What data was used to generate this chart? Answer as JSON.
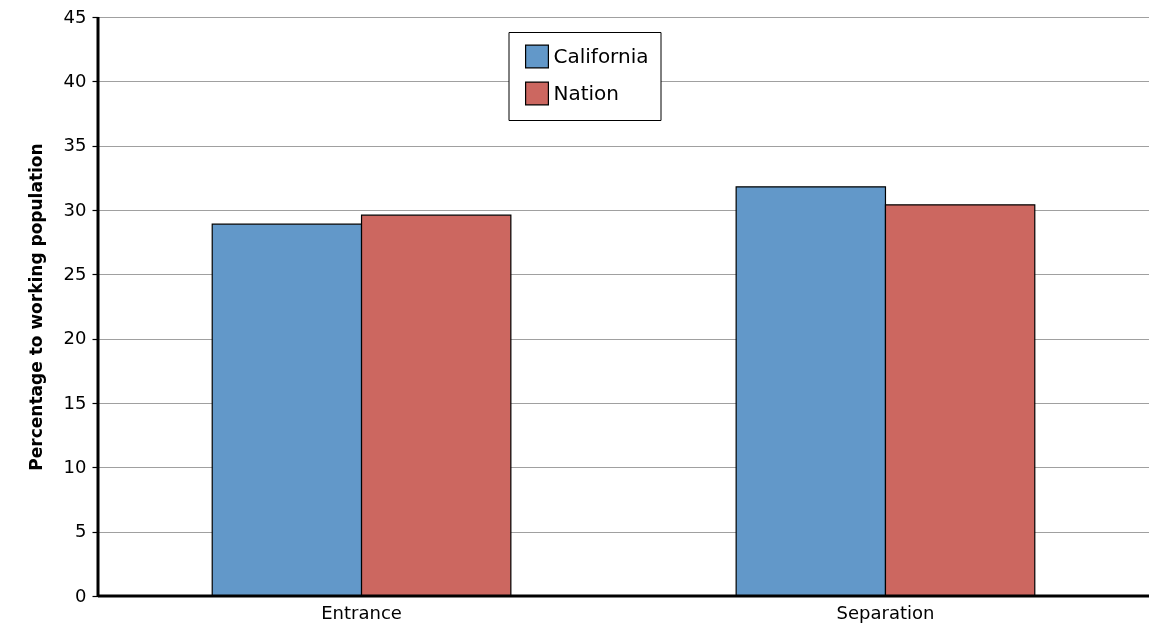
{
  "chart_data": {
    "type": "bar",
    "ylabel": "Percentage to working population",
    "categories": [
      "Entrance",
      "Separation"
    ],
    "series": [
      {
        "name": "California",
        "color": "#6298c9",
        "values": [
          28.9,
          31.8
        ]
      },
      {
        "name": "Nation",
        "color": "#cc6760",
        "values": [
          29.6,
          30.4
        ]
      }
    ],
    "ylim": [
      0,
      45
    ],
    "yticks": [
      0,
      5,
      10,
      15,
      20,
      25,
      30,
      35,
      40,
      45
    ],
    "grid": "y",
    "legend": "top"
  }
}
